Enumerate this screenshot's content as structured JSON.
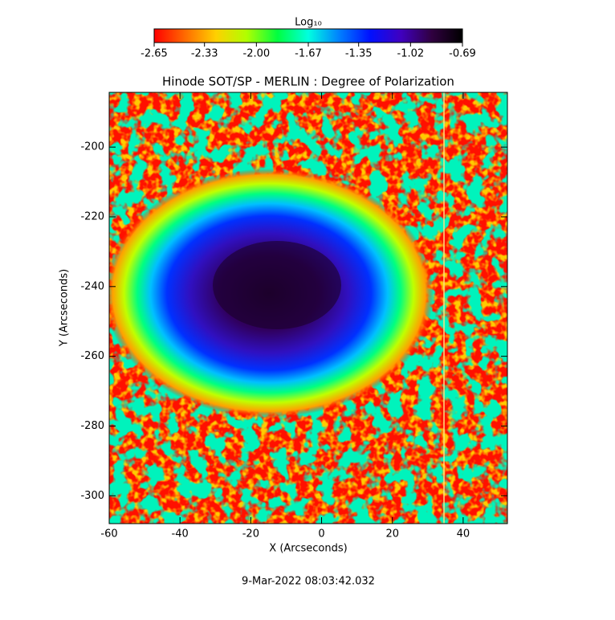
{
  "chart_data": {
    "type": "image",
    "title": "Hinode SOT/SP - MERLIN : Degree of Polarization",
    "x_label": "X (Arcseconds)",
    "y_label": "Y (Arcseconds)",
    "xlim": [
      -60,
      52.5
    ],
    "xticks": [
      -60,
      -40,
      -20,
      0,
      20,
      40
    ],
    "ylim": [
      -308,
      -184.3
    ],
    "yticks": [
      -300,
      -280,
      -260,
      -240,
      -220,
      -200
    ],
    "colorbar": {
      "label": "Log₁₀",
      "lim": [
        -2.65,
        -0.69
      ],
      "ticks": [
        {
          "value": -2.65,
          "label": "-2.65"
        },
        {
          "value": -2.33,
          "label": "-2.33"
        },
        {
          "value": -2,
          "label": "-2.00"
        },
        {
          "value": -1.67,
          "label": "-1.67"
        },
        {
          "value": -1.35,
          "label": "-1.35"
        },
        {
          "value": -1.02,
          "label": "-1.02"
        },
        {
          "value": -0.69,
          "label": "-0.69"
        }
      ],
      "colormap": [
        "#ff0000",
        "#ff6a00",
        "#ffd000",
        "#b0ff00",
        "#00ff40",
        "#00ffe0",
        "#0080ff",
        "#0010ff",
        "#4000c0",
        "#300040",
        "#000000"
      ]
    },
    "footer": "9-Mar-2022 08:03:42.032"
  }
}
